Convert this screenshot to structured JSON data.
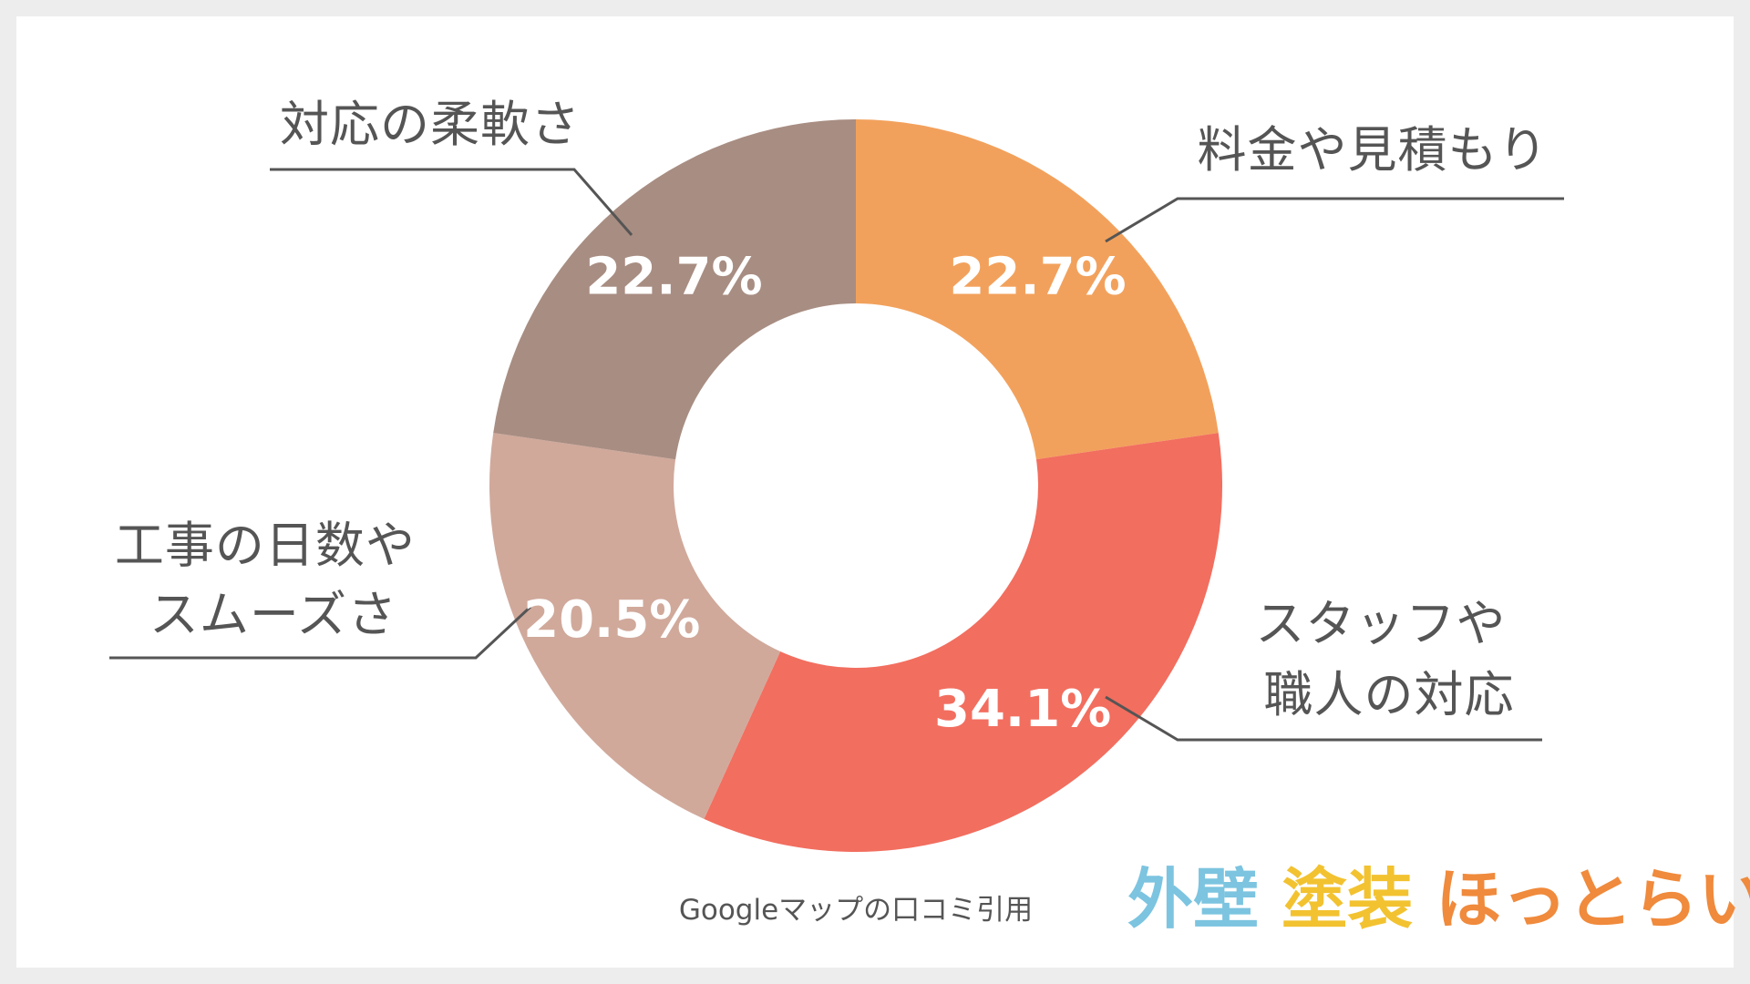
{
  "chart_data": {
    "type": "pie",
    "variant": "donut",
    "start": "12 o'clock",
    "direction": "clockwise",
    "slices": [
      {
        "label_lines": [
          "料金や見積もり"
        ],
        "value": 22.7,
        "value_label": "22.7%",
        "color": "#f2a15c"
      },
      {
        "label_lines": [
          "スタッフや",
          "職人の対応"
        ],
        "value": 34.1,
        "value_label": "34.1%",
        "color": "#f26e5f"
      },
      {
        "label_lines": [
          "工事の日数や",
          "スムーズさ"
        ],
        "value": 20.5,
        "value_label": "20.5%",
        "color": "#d0a99b"
      },
      {
        "label_lines": [
          "対応の柔軟さ"
        ],
        "value": 22.7,
        "value_label": "22.7%",
        "color": "#a88d82"
      }
    ]
  },
  "source_text": "Googleマップの口コミ引用",
  "logo": {
    "parts": [
      {
        "text": "外壁",
        "color": "#7cc4e0"
      },
      {
        "text": "塗装",
        "color": "#f2c230"
      },
      {
        "text": "ほっとらいん",
        "color": "#f08a3c"
      }
    ]
  }
}
